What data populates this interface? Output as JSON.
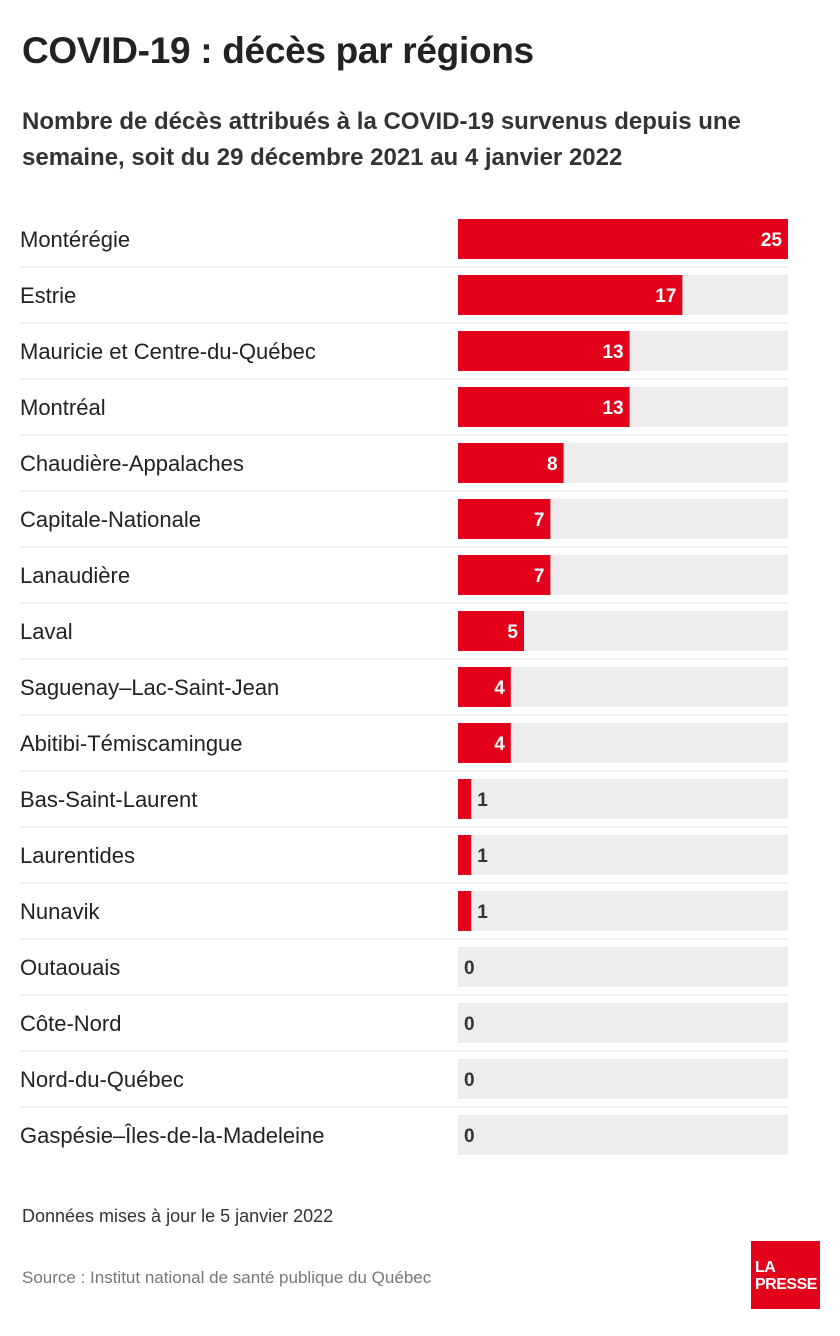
{
  "title": "COVID-19 : décès par régions",
  "subtitle": "Nombre de décès attribués à la COVID-19 survenus depuis une semaine, soit du 29 décembre 2021 au 4 janvier 2022",
  "note": "Données mises à jour le 5 janvier 2022",
  "source": "Source : Institut national de santé publique du Québec",
  "logo": {
    "line1": "LA",
    "line2": "PRESSE"
  },
  "colors": {
    "bar": "#e2001a",
    "track": "#ededed",
    "divider": "#e3e3e3"
  },
  "chart_data": {
    "type": "bar",
    "orientation": "horizontal",
    "categories": [
      "Montérégie",
      "Estrie",
      "Mauricie et Centre-du-Québec",
      "Montréal",
      "Chaudière-Appalaches",
      "Capitale-Nationale",
      "Lanaudière",
      "Laval",
      "Saguenay–Lac-Saint-Jean",
      "Abitibi-Témiscamingue",
      "Bas-Saint-Laurent",
      "Laurentides",
      "Nunavik",
      "Outaouais",
      "Côte-Nord",
      "Nord-du-Québec",
      "Gaspésie–Îles-de-la-Madeleine"
    ],
    "values": [
      25,
      17,
      13,
      13,
      8,
      7,
      7,
      5,
      4,
      4,
      1,
      1,
      1,
      0,
      0,
      0,
      0
    ],
    "xlim": [
      0,
      25
    ],
    "grid": false,
    "data_labels": true
  }
}
